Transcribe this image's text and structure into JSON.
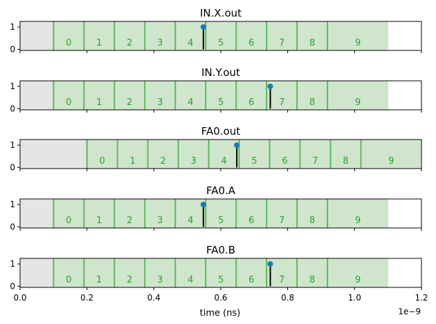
{
  "chart_data": [
    {
      "type": "timeline",
      "title": "IN.X.out",
      "slot_starts": [
        0.1,
        0.191,
        0.282,
        0.373,
        0.464,
        0.555,
        0.646,
        0.737,
        0.828,
        0.919
      ],
      "slot_end": 1.101,
      "slot_labels": [
        "0",
        "1",
        "2",
        "3",
        "4",
        "5",
        "6",
        "7",
        "8",
        "9"
      ],
      "event": {
        "x": 0.548,
        "y": 1
      },
      "yticks": [
        "0",
        "1"
      ]
    },
    {
      "type": "timeline",
      "title": "IN.Y.out",
      "slot_starts": [
        0.1,
        0.191,
        0.282,
        0.373,
        0.464,
        0.555,
        0.646,
        0.737,
        0.828,
        0.919
      ],
      "slot_end": 1.101,
      "slot_labels": [
        "0",
        "1",
        "2",
        "3",
        "4",
        "5",
        "6",
        "7",
        "8",
        "9"
      ],
      "event": {
        "x": 0.748,
        "y": 1
      },
      "yticks": [
        "0",
        "1"
      ]
    },
    {
      "type": "timeline",
      "title": "FA0.out",
      "slot_starts": [
        0.2,
        0.291,
        0.382,
        0.473,
        0.564,
        0.655,
        0.746,
        0.837,
        0.928,
        1.019
      ],
      "slot_end": 1.2,
      "slot_labels": [
        "0",
        "1",
        "2",
        "3",
        "4",
        "5",
        "6",
        "7",
        "8",
        "9"
      ],
      "event": {
        "x": 0.648,
        "y": 1
      },
      "yticks": [
        "0",
        "1"
      ]
    },
    {
      "type": "timeline",
      "title": "FA0.A",
      "slot_starts": [
        0.1,
        0.191,
        0.282,
        0.373,
        0.464,
        0.555,
        0.646,
        0.737,
        0.828,
        0.919
      ],
      "slot_end": 1.101,
      "slot_labels": [
        "0",
        "1",
        "2",
        "3",
        "4",
        "5",
        "6",
        "7",
        "8",
        "9"
      ],
      "event": {
        "x": 0.548,
        "y": 1
      },
      "yticks": [
        "0",
        "1"
      ]
    },
    {
      "type": "timeline",
      "title": "FA0.B",
      "slot_starts": [
        0.1,
        0.191,
        0.282,
        0.373,
        0.464,
        0.555,
        0.646,
        0.737,
        0.828,
        0.919
      ],
      "slot_end": 1.101,
      "slot_labels": [
        "0",
        "1",
        "2",
        "3",
        "4",
        "5",
        "6",
        "7",
        "8",
        "9"
      ],
      "event": {
        "x": 0.748,
        "y": 1
      },
      "yticks": [
        "0",
        "1"
      ]
    }
  ],
  "shared_x": {
    "xlim": [
      0.0,
      1.2
    ],
    "ylim": [
      -0.05,
      1.25
    ],
    "xticks": [
      0.0,
      0.2,
      0.4,
      0.6,
      0.8,
      1.0,
      1.2
    ],
    "xtick_labels": [
      "0.0",
      "0.2",
      "0.4",
      "0.6",
      "0.8",
      "1.0",
      "1.2"
    ],
    "xlabel": "time (ns)",
    "offset_text": "1e−9"
  },
  "colors": {
    "idle_fill": "#e5e5e5",
    "slot_fill": "#cfe6cc",
    "slot_line": "#5cb85c",
    "slot_text": "#2ca02c",
    "marker": "#1f77b4",
    "stem": "#000000"
  }
}
